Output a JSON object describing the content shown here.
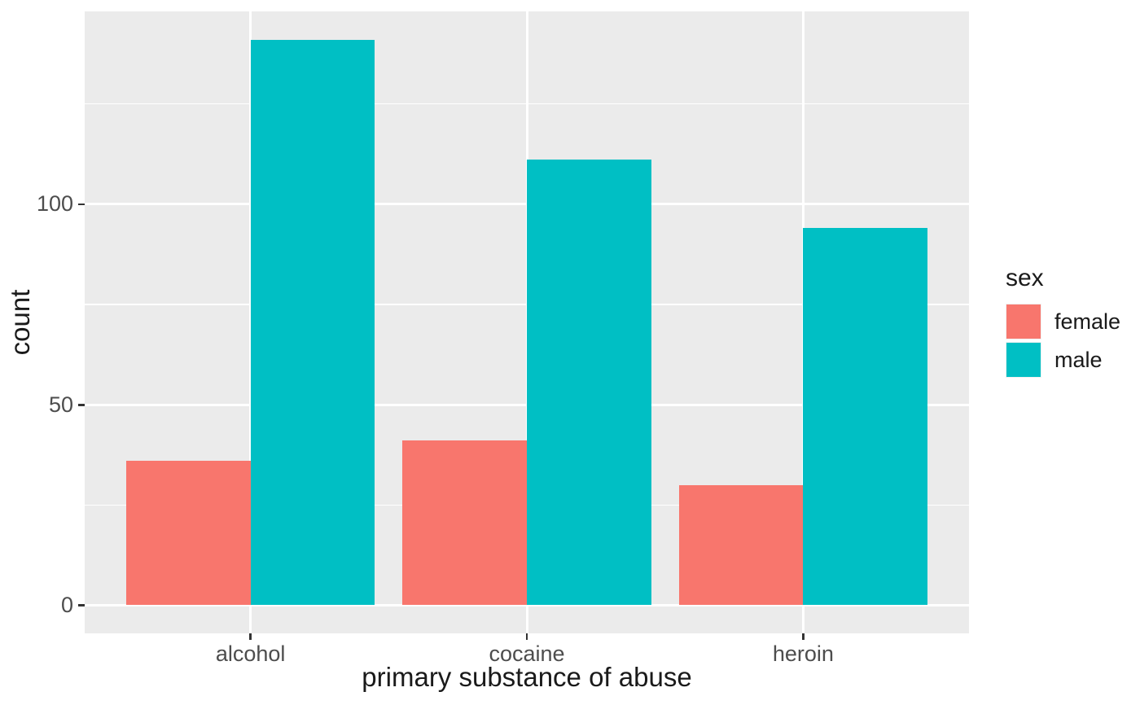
{
  "chart_data": {
    "type": "bar",
    "title": "",
    "xlabel": "primary substance of abuse",
    "ylabel": "count",
    "categories": [
      "alcohol",
      "cocaine",
      "heroin"
    ],
    "series": [
      {
        "name": "female",
        "color": "#F8766D",
        "values": [
          36,
          41,
          30
        ]
      },
      {
        "name": "male",
        "color": "#00BFC4",
        "values": [
          141,
          111,
          94
        ]
      }
    ],
    "y_ticks": [
      0,
      50,
      100
    ],
    "y_minor_ticks": [
      25,
      75,
      125
    ],
    "ylim": [
      -7,
      148
    ],
    "legend": {
      "title": "sex",
      "position": "right",
      "entries": [
        "female",
        "male"
      ]
    },
    "grid": true,
    "colors": {
      "panel_bg": "#EBEBEB",
      "grid": "#FFFFFF",
      "axis_text": "#4D4D4D",
      "title_text": "#1A1A1A",
      "tick_mark": "#333333",
      "background": "#FFFFFF"
    }
  }
}
